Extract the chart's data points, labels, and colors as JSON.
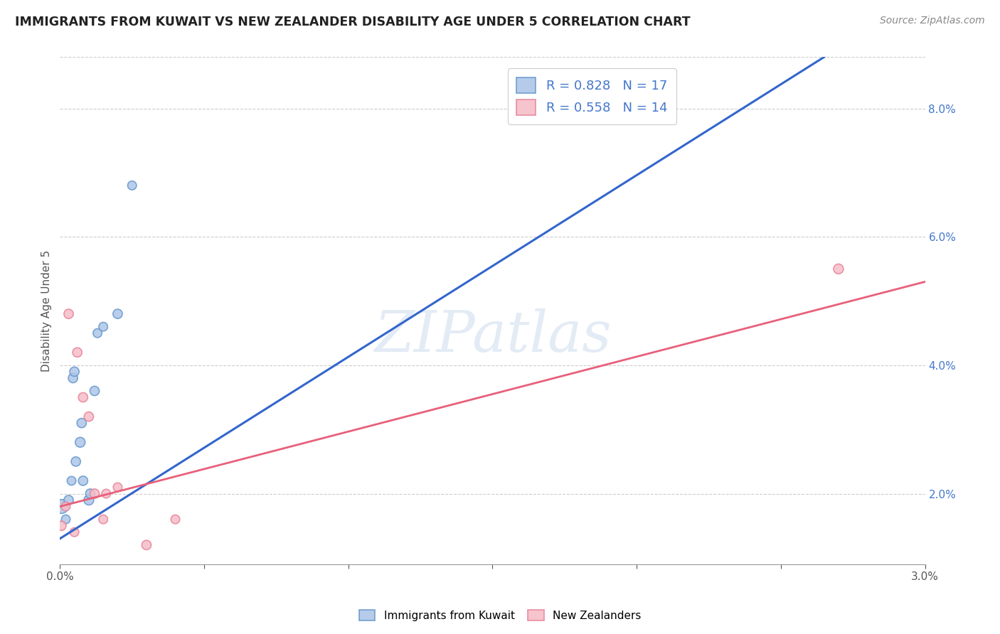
{
  "title": "IMMIGRANTS FROM KUWAIT VS NEW ZEALANDER DISABILITY AGE UNDER 5 CORRELATION CHART",
  "source": "Source: ZipAtlas.com",
  "ylabel": "Disability Age Under 5",
  "legend1_text": "R = 0.828   N = 17",
  "legend2_text": "R = 0.558   N = 14",
  "legend_xlabel1": "Immigrants from Kuwait",
  "legend_xlabel2": "New Zealanders",
  "watermark": "ZIPatlas",
  "blue_color": "#aec6e8",
  "blue_edge_color": "#6699cc",
  "pink_color": "#f5bec8",
  "pink_edge_color": "#e8849a",
  "blue_line_color": "#3366cc",
  "pink_line_color": "#e8607a",
  "right_axis_color": "#4477CC",
  "xlim": [
    0.0,
    0.03
  ],
  "ylim": [
    0.009,
    0.088
  ],
  "blue_scatter": {
    "x": [
      5e-05,
      0.0002,
      0.0003,
      0.0004,
      0.00045,
      0.0005,
      0.00055,
      0.0007,
      0.00075,
      0.0008,
      0.001,
      0.00105,
      0.0012,
      0.0013,
      0.0015,
      0.002,
      0.0025
    ],
    "y": [
      0.018,
      0.016,
      0.019,
      0.022,
      0.038,
      0.039,
      0.025,
      0.028,
      0.031,
      0.022,
      0.019,
      0.02,
      0.036,
      0.045,
      0.046,
      0.048,
      0.068
    ],
    "sizes": [
      200,
      80,
      90,
      80,
      90,
      90,
      90,
      100,
      90,
      90,
      100,
      90,
      90,
      80,
      80,
      90,
      80
    ]
  },
  "pink_scatter": {
    "x": [
      5e-05,
      0.0002,
      0.0003,
      0.0005,
      0.0006,
      0.0008,
      0.001,
      0.0012,
      0.0015,
      0.0016,
      0.002,
      0.003,
      0.004,
      0.027
    ],
    "y": [
      0.015,
      0.018,
      0.048,
      0.014,
      0.042,
      0.035,
      0.032,
      0.02,
      0.016,
      0.02,
      0.021,
      0.012,
      0.016,
      0.055
    ],
    "sizes": [
      90,
      80,
      90,
      80,
      90,
      90,
      90,
      90,
      80,
      80,
      80,
      90,
      80,
      100
    ]
  },
  "blue_line": {
    "x": [
      0.0,
      0.0265
    ],
    "y": [
      0.013,
      0.088
    ]
  },
  "pink_line": {
    "x": [
      0.0,
      0.03
    ],
    "y": [
      0.018,
      0.053
    ]
  },
  "x_ticks": [
    0.0,
    0.005,
    0.01,
    0.015,
    0.02,
    0.025,
    0.03
  ],
  "y_ticks_right": [
    0.02,
    0.04,
    0.06,
    0.08
  ]
}
